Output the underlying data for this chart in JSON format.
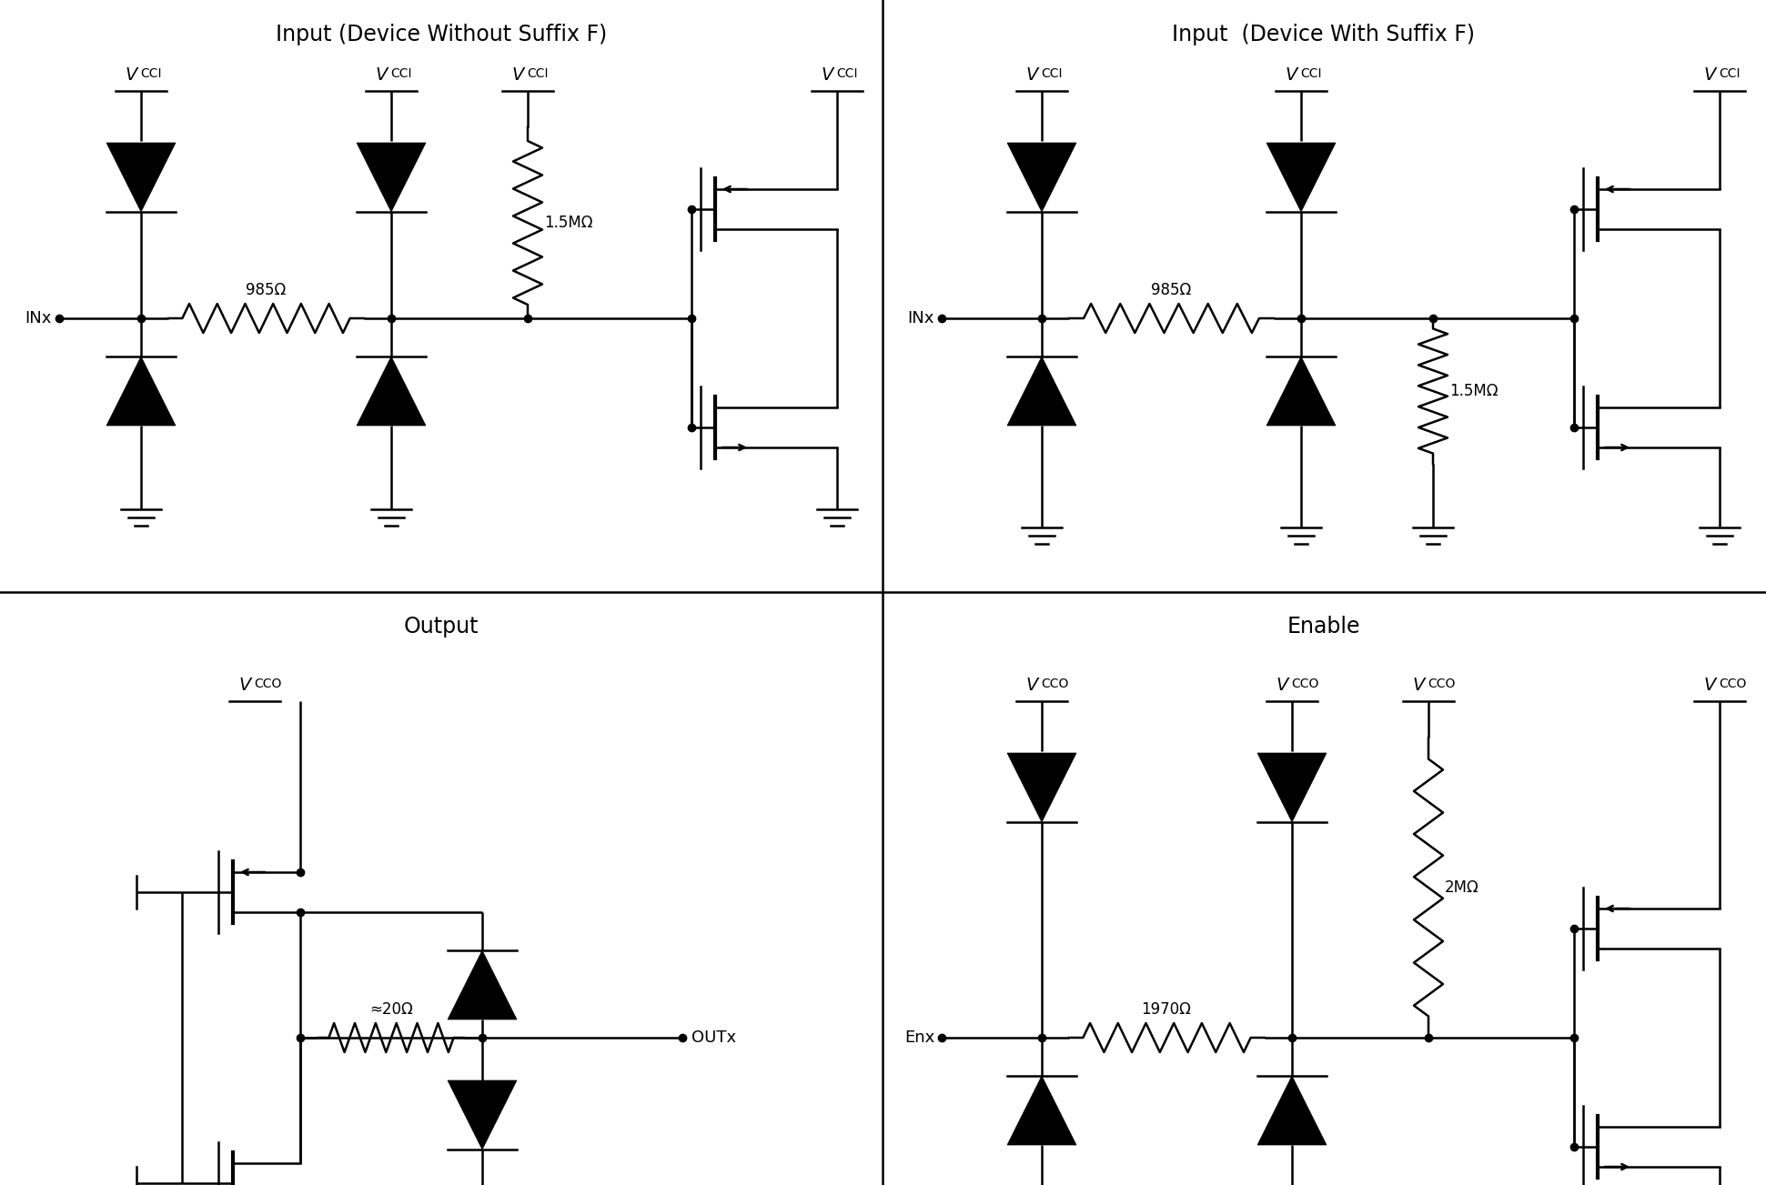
{
  "bg": "#ffffff",
  "lc": "#000000",
  "lw": 1.8,
  "lw_body": 3.0,
  "fs_title": 17,
  "fs_label": 13,
  "fs_small": 12,
  "fs_vcc_main": 14,
  "fs_vcc_sub": 10,
  "divx": 0.5,
  "divy": 0.5,
  "titles": [
    "Input (Device Without Suffix F)",
    "Input  (Device With Suffix F)",
    "Output",
    "Enable"
  ]
}
